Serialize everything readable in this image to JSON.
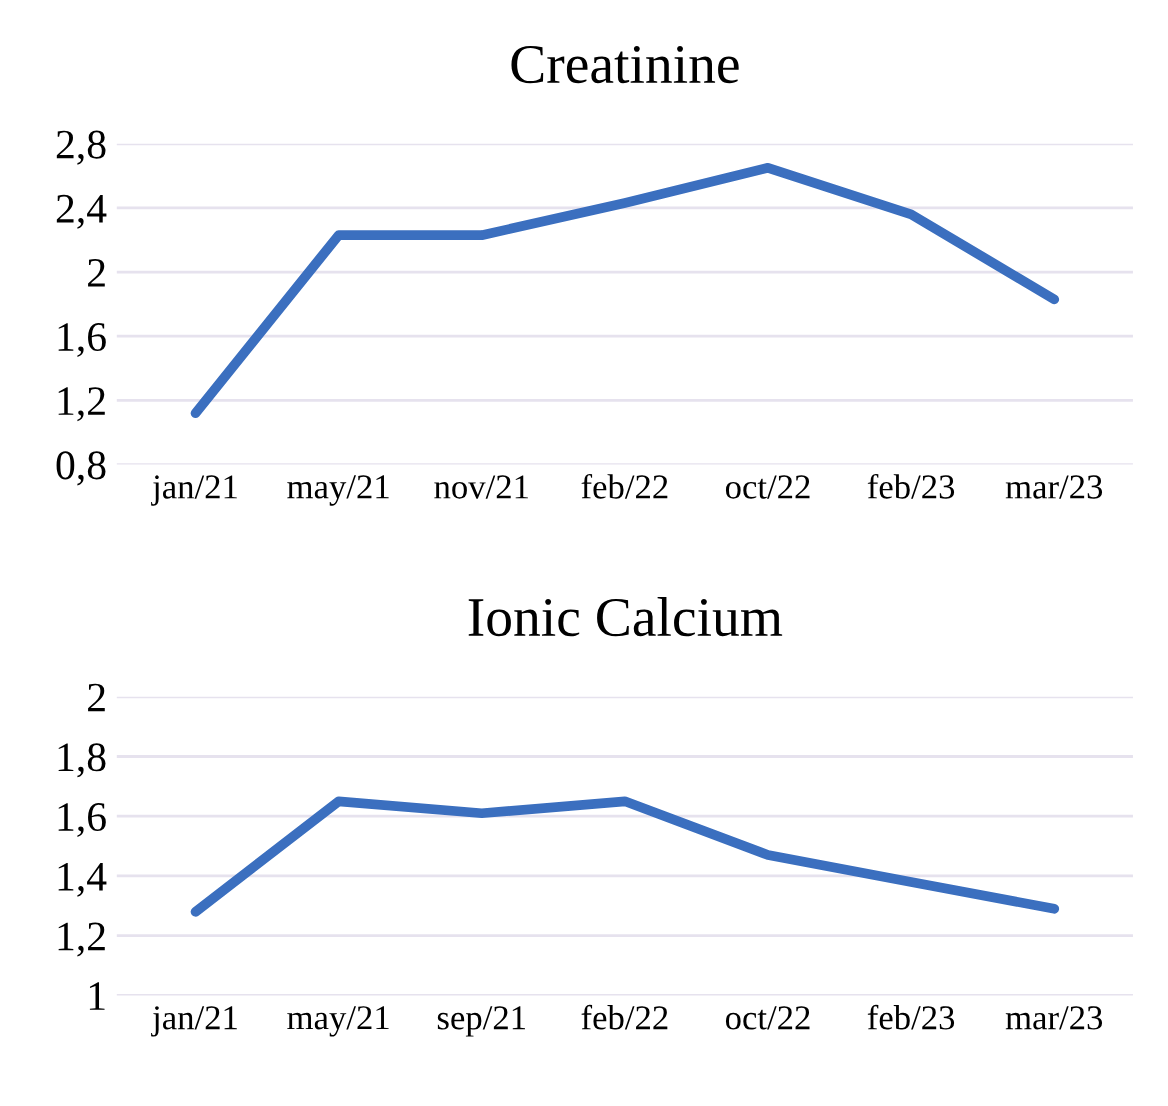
{
  "chart_data": [
    {
      "type": "line",
      "title": "Creatinine",
      "categories": [
        "jan/21",
        "may/21",
        "nov/21",
        "feb/22",
        "oct/22",
        "feb/23",
        "mar/23"
      ],
      "series": [
        {
          "color": "#3b6fbf",
          "values": [
            1.12,
            2.23,
            2.23,
            2.43,
            2.65,
            2.36,
            1.83
          ]
        }
      ],
      "ylim": [
        0.8,
        2.8
      ],
      "yticks": [
        {
          "value": 0.8,
          "label": "0,8"
        },
        {
          "value": 1.2,
          "label": "1,2"
        },
        {
          "value": 1.6,
          "label": "1,6"
        },
        {
          "value": 2,
          "label": "2"
        },
        {
          "value": 2.4,
          "label": "2,4"
        },
        {
          "value": 2.8,
          "label": "2,8"
        }
      ],
      "grid": "y"
    },
    {
      "type": "line",
      "title": "Ionic Calcium",
      "categories": [
        "jan/21",
        "may/21",
        "sep/21",
        "feb/22",
        "oct/22",
        "feb/23",
        "mar/23"
      ],
      "series": [
        {
          "color": "#3b6fbf",
          "values": [
            1.28,
            1.65,
            1.61,
            1.65,
            1.47,
            1.38,
            1.29
          ]
        }
      ],
      "ylim": [
        1,
        2
      ],
      "yticks": [
        {
          "value": 1,
          "label": "1"
        },
        {
          "value": 1.2,
          "label": "1,2"
        },
        {
          "value": 1.4,
          "label": "1,4"
        },
        {
          "value": 1.6,
          "label": "1,6"
        },
        {
          "value": 1.8,
          "label": "1,8"
        },
        {
          "value": 2,
          "label": "2"
        }
      ],
      "grid": "y"
    }
  ]
}
